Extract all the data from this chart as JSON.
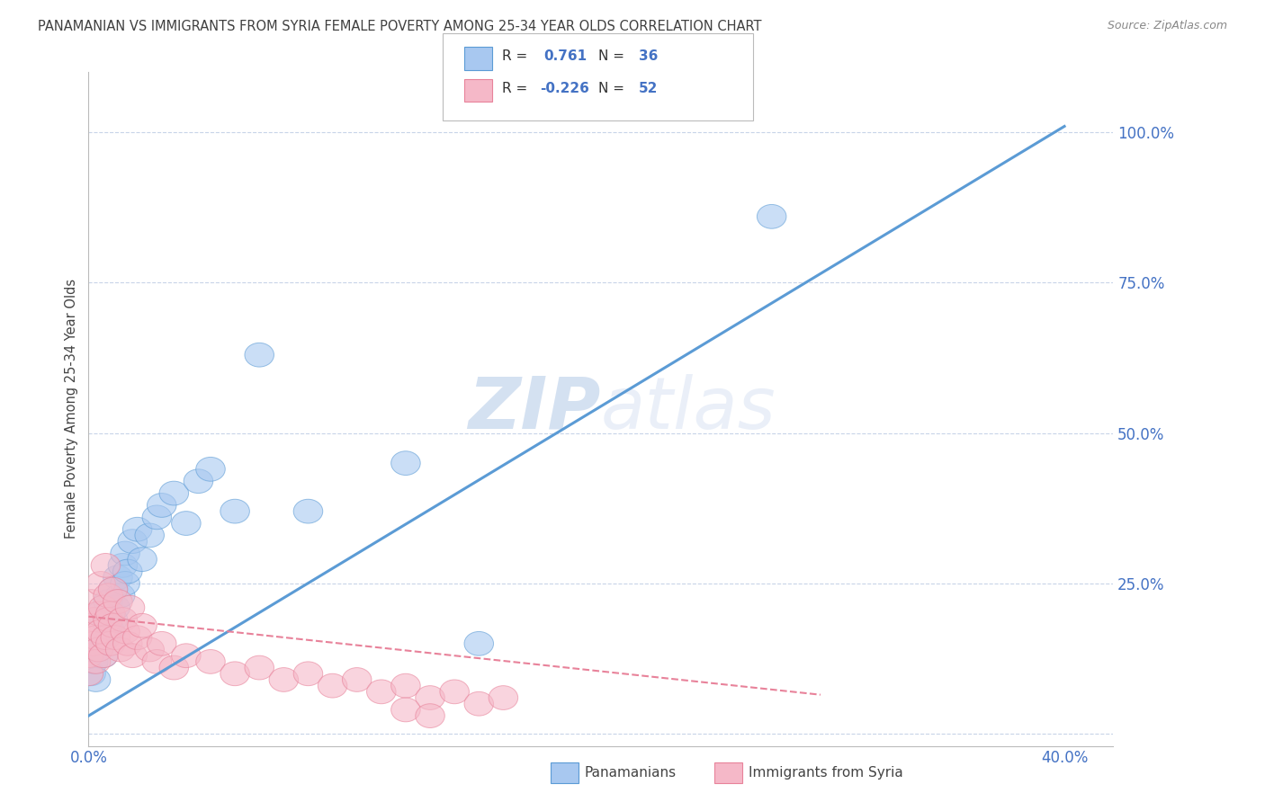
{
  "title": "PANAMANIAN VS IMMIGRANTS FROM SYRIA FEMALE POVERTY AMONG 25-34 YEAR OLDS CORRELATION CHART",
  "source": "Source: ZipAtlas.com",
  "ylabel": "Female Poverty Among 25-34 Year Olds",
  "xlim": [
    0.0,
    0.42
  ],
  "ylim": [
    -0.02,
    1.1
  ],
  "xticks": [
    0.0,
    0.05,
    0.1,
    0.15,
    0.2,
    0.25,
    0.3,
    0.35,
    0.4
  ],
  "xtick_labels": [
    "0.0%",
    "",
    "",
    "",
    "",
    "",
    "",
    "",
    "40.0%"
  ],
  "yticks": [
    0.0,
    0.25,
    0.5,
    0.75,
    1.0
  ],
  "ytick_labels": [
    "",
    "25.0%",
    "50.0%",
    "75.0%",
    "100.0%"
  ],
  "legend_r_blue": "0.761",
  "legend_n_blue": "36",
  "legend_r_pink": "-0.226",
  "legend_n_pink": "52",
  "blue_fill": "#A8C8F0",
  "pink_fill": "#F5B8C8",
  "blue_edge": "#5B9BD5",
  "pink_edge": "#E8829A",
  "title_color": "#404040",
  "axis_color": "#4472C4",
  "watermark_color": "#D0DEF0",
  "grid_color": "#C8D4E8",
  "blue_trend_x": [
    0.0,
    0.4
  ],
  "blue_trend_y": [
    0.03,
    1.01
  ],
  "pink_trend_x": [
    0.0,
    0.3
  ],
  "pink_trend_y": [
    0.195,
    0.065
  ],
  "blue_points_x": [
    0.001,
    0.002,
    0.003,
    0.004,
    0.005,
    0.005,
    0.006,
    0.007,
    0.008,
    0.008,
    0.009,
    0.01,
    0.01,
    0.011,
    0.012,
    0.013,
    0.014,
    0.015,
    0.015,
    0.016,
    0.018,
    0.02,
    0.022,
    0.025,
    0.028,
    0.03,
    0.035,
    0.04,
    0.045,
    0.05,
    0.06,
    0.07,
    0.09,
    0.13,
    0.16,
    0.28
  ],
  "blue_points_y": [
    0.1,
    0.12,
    0.09,
    0.14,
    0.15,
    0.2,
    0.13,
    0.16,
    0.18,
    0.22,
    0.17,
    0.19,
    0.24,
    0.21,
    0.26,
    0.23,
    0.28,
    0.25,
    0.3,
    0.27,
    0.32,
    0.34,
    0.29,
    0.33,
    0.36,
    0.38,
    0.4,
    0.35,
    0.42,
    0.44,
    0.37,
    0.63,
    0.37,
    0.45,
    0.15,
    0.86
  ],
  "pink_points_x": [
    0.0,
    0.0,
    0.001,
    0.001,
    0.002,
    0.002,
    0.003,
    0.003,
    0.004,
    0.004,
    0.005,
    0.005,
    0.006,
    0.006,
    0.007,
    0.007,
    0.008,
    0.008,
    0.009,
    0.009,
    0.01,
    0.01,
    0.011,
    0.012,
    0.013,
    0.014,
    0.015,
    0.016,
    0.017,
    0.018,
    0.02,
    0.022,
    0.025,
    0.028,
    0.03,
    0.035,
    0.04,
    0.05,
    0.06,
    0.07,
    0.08,
    0.09,
    0.1,
    0.11,
    0.12,
    0.13,
    0.14,
    0.15,
    0.16,
    0.17,
    0.13,
    0.14
  ],
  "pink_points_y": [
    0.1,
    0.13,
    0.18,
    0.22,
    0.15,
    0.19,
    0.12,
    0.16,
    0.2,
    0.14,
    0.25,
    0.17,
    0.21,
    0.13,
    0.28,
    0.16,
    0.19,
    0.23,
    0.15,
    0.2,
    0.18,
    0.24,
    0.16,
    0.22,
    0.14,
    0.19,
    0.17,
    0.15,
    0.21,
    0.13,
    0.16,
    0.18,
    0.14,
    0.12,
    0.15,
    0.11,
    0.13,
    0.12,
    0.1,
    0.11,
    0.09,
    0.1,
    0.08,
    0.09,
    0.07,
    0.08,
    0.06,
    0.07,
    0.05,
    0.06,
    0.04,
    0.03
  ],
  "background_color": "#FFFFFF"
}
